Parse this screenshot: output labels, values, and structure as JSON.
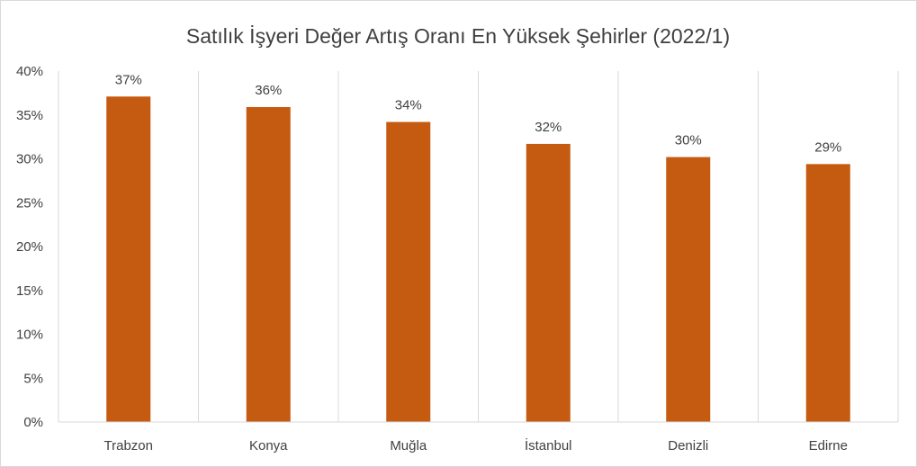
{
  "chart_data": {
    "type": "bar",
    "title": "Satılık İşyeri Değer Artış Oranı En Yüksek Şehirler (2022/1)",
    "categories": [
      "Trabzon",
      "Konya",
      "Muğla",
      "İstanbul",
      "Denizli",
      "Edirne"
    ],
    "values": [
      0.371,
      0.359,
      0.342,
      0.317,
      0.302,
      0.294
    ],
    "data_labels": [
      "37%",
      "36%",
      "34%",
      "32%",
      "30%",
      "29%"
    ],
    "y_ticks": [
      "0%",
      "5%",
      "10%",
      "15%",
      "20%",
      "25%",
      "30%",
      "35%",
      "40%"
    ],
    "ylim": [
      0,
      0.4
    ],
    "ytick_step": 0.05,
    "xlabel": "",
    "ylabel": "",
    "grid": "vertical category separators",
    "legend": "none",
    "bar_color": "#c55a11",
    "grid_color": "#d9d9d9"
  }
}
